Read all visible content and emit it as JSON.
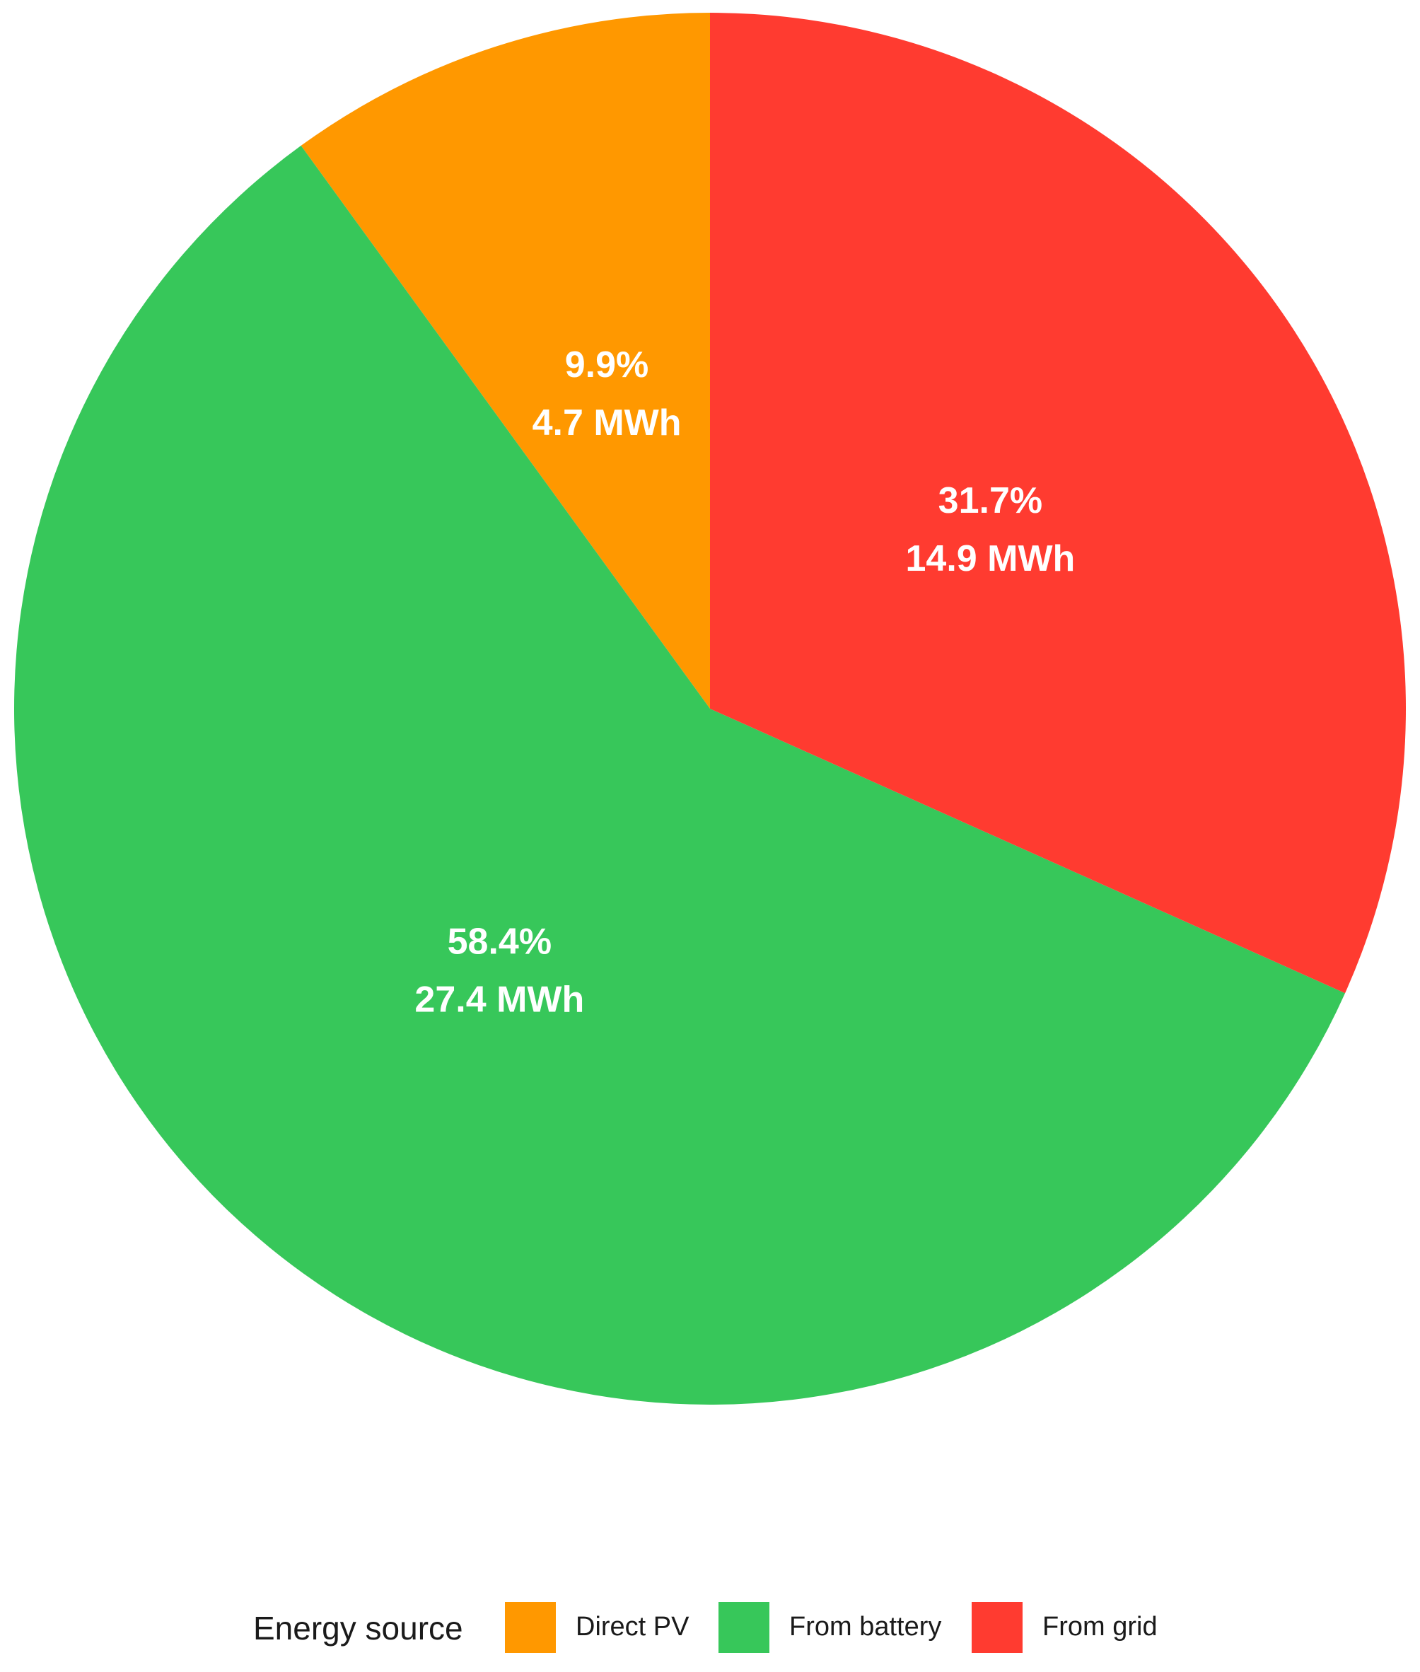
{
  "chart_data": {
    "type": "pie",
    "categories": [
      "Direct PV",
      "From battery",
      "From grid"
    ],
    "values": [
      4.7,
      27.4,
      14.9
    ],
    "unit": "MWh",
    "percent_labels": [
      "9.9%",
      "58.4%",
      "31.7%"
    ],
    "value_labels": [
      "4.7 MWh",
      "27.4 MWh",
      "14.9 MWh"
    ],
    "percentages": [
      9.9,
      58.4,
      31.7
    ],
    "colors": [
      "#FF9800",
      "#37C75A",
      "#FF3B30"
    ],
    "start_angle": "12 o'clock",
    "direction": "counterclockwise for listed order",
    "legend": {
      "title": "Energy source",
      "placement": "bottom",
      "entries": [
        "Direct PV",
        "From battery",
        "From grid"
      ]
    }
  }
}
